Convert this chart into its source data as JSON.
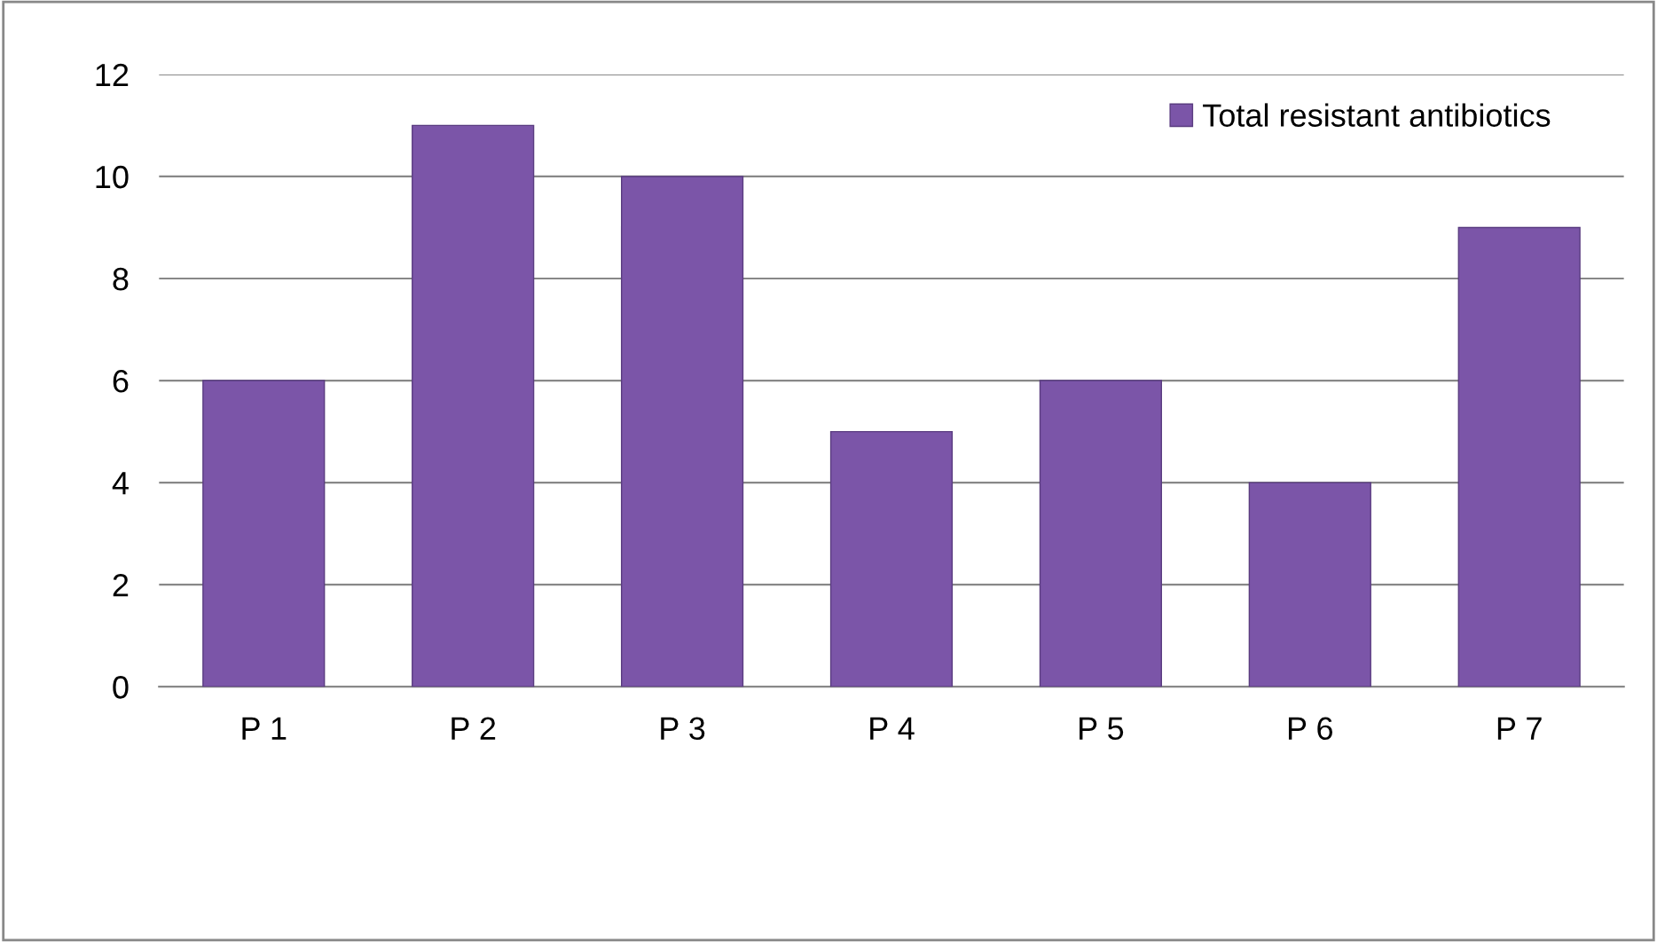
{
  "chart_data": {
    "type": "bar",
    "categories": [
      "P 1",
      "P 2",
      "P 3",
      "P 4",
      "P 5",
      "P 6",
      "P 7"
    ],
    "series": [
      {
        "name": "Total resistant antibiotics",
        "color": "#7b55a8",
        "values": [
          6,
          11,
          10,
          5,
          6,
          4,
          9
        ]
      }
    ],
    "ylim": [
      0,
      12
    ],
    "yticks": [
      0,
      2,
      4,
      6,
      8,
      10,
      12
    ],
    "grid": "y",
    "legend": "top right"
  }
}
